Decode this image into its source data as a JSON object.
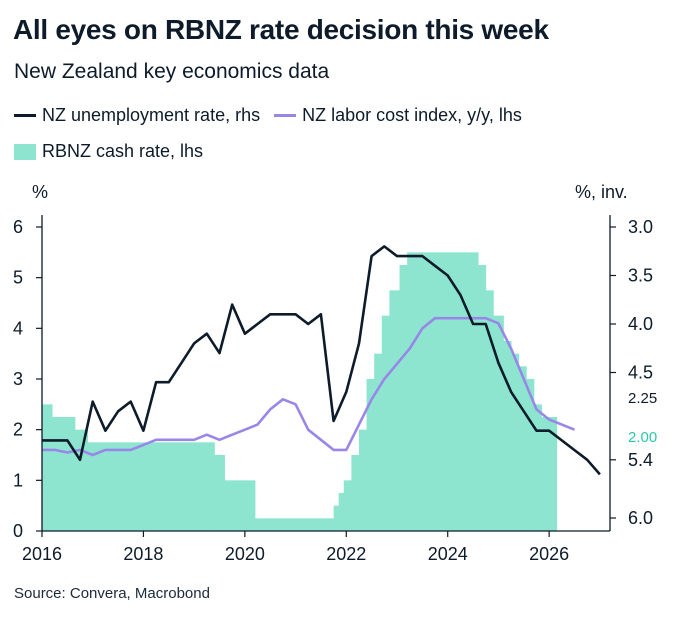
{
  "header": {
    "title": "All eyes on RBNZ rate decision this week",
    "subtitle": "New Zealand key economics data"
  },
  "legend": {
    "unemployment": "NZ unemployment rate, rhs",
    "labor_cost": "NZ labor cost index, y/y, lhs",
    "cash_rate": "RBNZ cash rate, lhs"
  },
  "source": "Source: Convera, Macrobond",
  "colors": {
    "unemployment": "#0d1b2a",
    "labor_cost": "#9a86e8",
    "cash_rate": "#8de5cf",
    "text": "#0d1b2a"
  },
  "chart_data": {
    "type": "line",
    "left_axis": {
      "unit_label": "%",
      "ylim": [
        0,
        6
      ],
      "ticks": [
        "0",
        "1",
        "2",
        "3",
        "4",
        "5",
        "6"
      ]
    },
    "right_axis": {
      "unit_label": "%, inv.",
      "ylim": [
        6.0,
        3.0
      ],
      "inverted": true,
      "ticks": [
        "6.0",
        "5.4",
        "4.5",
        "4.0",
        "3.5",
        "3.0"
      ],
      "tick_values": [
        6.0,
        5.4,
        4.5,
        4.0,
        3.5,
        3.0
      ]
    },
    "x_axis": {
      "ticks": [
        "2016",
        "2018",
        "2020",
        "2022",
        "2024",
        "2026"
      ],
      "tick_values": [
        2016,
        2018,
        2020,
        2022,
        2024,
        2026
      ],
      "xlim": [
        2016,
        2027.2
      ]
    },
    "end_labels": {
      "cash_rate_now": "2.25",
      "cash_rate_next": "2.00"
    },
    "series": [
      {
        "name": "RBNZ cash rate, lhs",
        "axis": "left",
        "style": "step-area",
        "x": [
          2016.0,
          2016.2,
          2016.65,
          2016.9,
          2017.0,
          2017.5,
          2019.4,
          2019.6,
          2020.2,
          2021.75,
          2021.85,
          2021.95,
          2022.1,
          2022.25,
          2022.4,
          2022.55,
          2022.7,
          2022.85,
          2023.05,
          2023.2,
          2023.35,
          2023.5,
          2024.6,
          2024.75,
          2024.9,
          2025.1,
          2025.25,
          2025.4,
          2025.55,
          2025.7,
          2025.85,
          2026.15
        ],
        "values": [
          2.5,
          2.25,
          2.0,
          1.75,
          1.75,
          1.75,
          1.5,
          1.0,
          0.25,
          0.5,
          0.75,
          1.0,
          1.5,
          2.0,
          3.0,
          3.5,
          4.25,
          4.75,
          5.25,
          5.5,
          5.5,
          5.5,
          5.25,
          4.75,
          4.25,
          3.75,
          3.5,
          3.25,
          3.0,
          2.5,
          2.25,
          2.25
        ]
      },
      {
        "name": "NZ labor cost index, y/y, lhs",
        "axis": "left",
        "style": "line",
        "x": [
          2016.0,
          2016.25,
          2016.5,
          2016.75,
          2017.0,
          2017.25,
          2017.5,
          2017.75,
          2018.0,
          2018.25,
          2018.5,
          2018.75,
          2019.0,
          2019.25,
          2019.5,
          2019.75,
          2020.0,
          2020.25,
          2020.5,
          2020.75,
          2021.0,
          2021.25,
          2021.5,
          2021.75,
          2022.0,
          2022.25,
          2022.5,
          2022.75,
          2023.0,
          2023.25,
          2023.5,
          2023.75,
          2024.0,
          2024.25,
          2024.5,
          2024.75,
          2025.0,
          2025.25,
          2025.5,
          2025.75,
          2026.0,
          2026.25,
          2026.5
        ],
        "values": [
          1.6,
          1.6,
          1.55,
          1.6,
          1.5,
          1.6,
          1.6,
          1.6,
          1.7,
          1.8,
          1.8,
          1.8,
          1.8,
          1.9,
          1.8,
          1.9,
          2.0,
          2.1,
          2.4,
          2.6,
          2.5,
          2.0,
          1.8,
          1.6,
          1.6,
          2.1,
          2.6,
          3.0,
          3.3,
          3.6,
          4.0,
          4.2,
          4.2,
          4.2,
          4.2,
          4.2,
          4.1,
          3.6,
          3.0,
          2.4,
          2.2,
          2.1,
          2.0
        ]
      },
      {
        "name": "NZ unemployment rate, rhs",
        "axis": "right",
        "style": "line",
        "x": [
          2016.0,
          2016.25,
          2016.5,
          2016.75,
          2017.0,
          2017.25,
          2017.5,
          2017.75,
          2018.0,
          2018.25,
          2018.5,
          2018.75,
          2019.0,
          2019.25,
          2019.5,
          2019.75,
          2020.0,
          2020.25,
          2020.5,
          2020.75,
          2021.0,
          2021.25,
          2021.5,
          2021.75,
          2022.0,
          2022.25,
          2022.5,
          2022.75,
          2023.0,
          2023.25,
          2023.5,
          2023.75,
          2024.0,
          2024.25,
          2024.5,
          2024.75,
          2025.0,
          2025.25,
          2025.5,
          2025.75,
          2026.0,
          2026.25,
          2026.5,
          2026.75,
          2027.0
        ],
        "values": [
          5.2,
          5.2,
          5.2,
          5.4,
          4.8,
          5.1,
          4.9,
          4.8,
          5.1,
          4.6,
          4.6,
          4.4,
          4.2,
          4.1,
          4.3,
          3.8,
          4.1,
          4.0,
          3.9,
          3.9,
          3.9,
          4.0,
          3.9,
          5.0,
          4.7,
          4.2,
          3.3,
          3.2,
          3.3,
          3.3,
          3.3,
          3.4,
          3.5,
          3.7,
          4.0,
          4.0,
          4.4,
          4.7,
          4.9,
          5.1,
          5.1,
          5.2,
          5.3,
          5.4,
          5.55
        ]
      }
    ]
  }
}
